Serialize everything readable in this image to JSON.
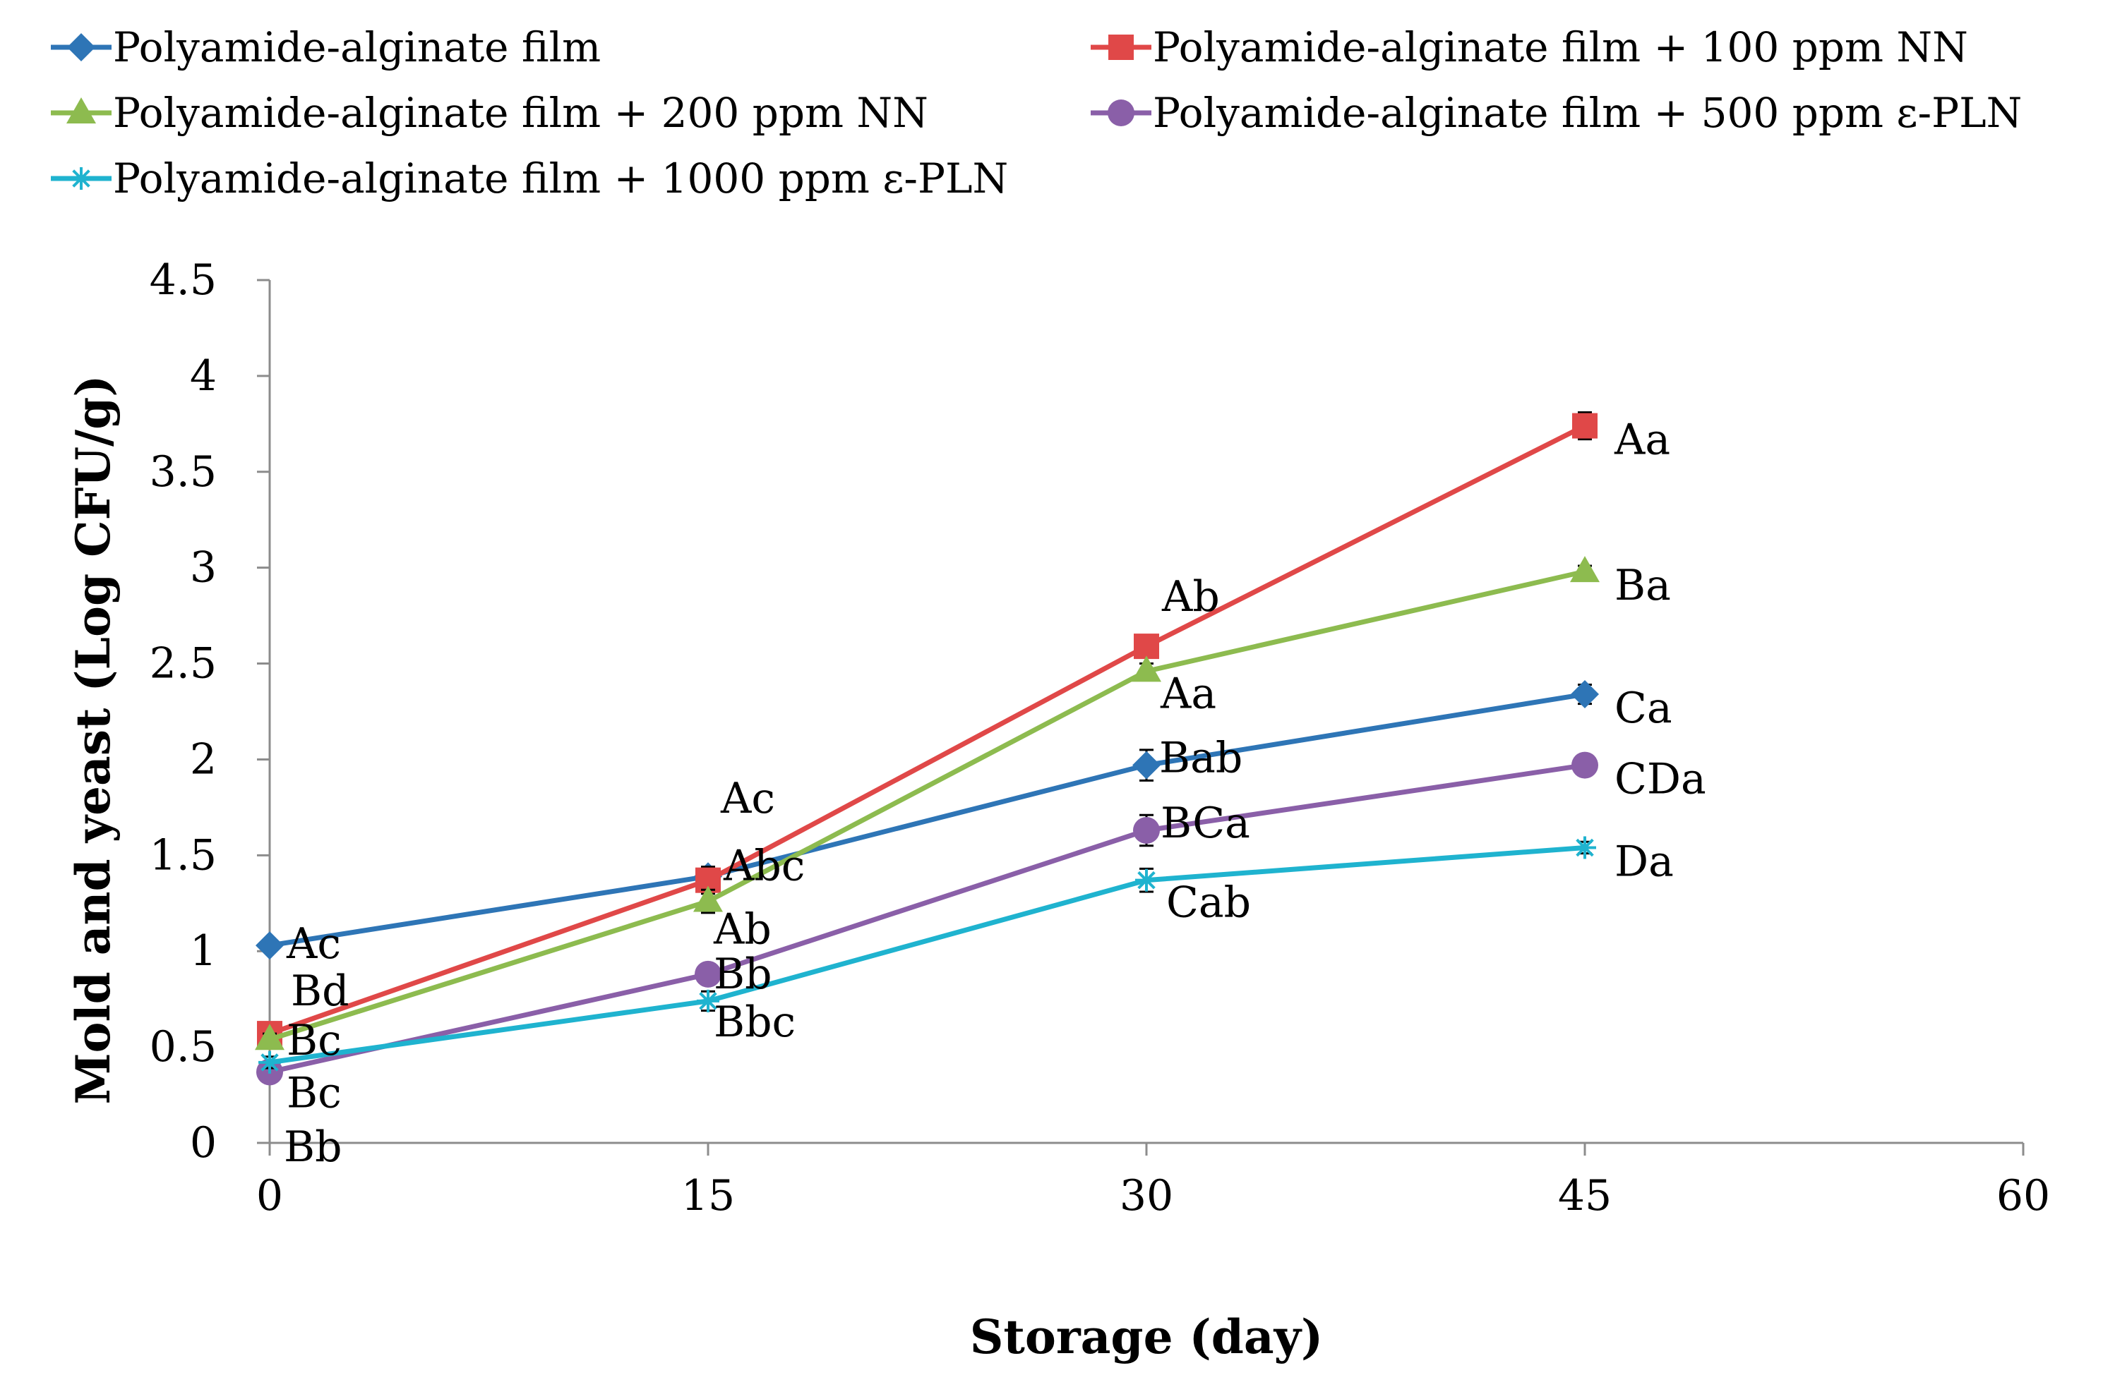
{
  "chart_data": {
    "type": "line",
    "title": "",
    "xlabel": "Storage (day)",
    "ylabel": "Mold and yeast (Log CFU/g)",
    "xlim": [
      0,
      60
    ],
    "ylim": [
      0,
      4.5
    ],
    "xticks": [
      "0",
      "15",
      "30",
      "45",
      "60"
    ],
    "yticks": [
      "0",
      "0.5",
      "1",
      "1.5",
      "2",
      "2.5",
      "3",
      "3.5",
      "4",
      "4.5"
    ],
    "x": [
      0,
      15,
      30,
      45
    ],
    "grid": false,
    "legend_position": "top",
    "series": [
      {
        "name": "Polyamide-alginate film",
        "color": "#2e75b6",
        "marker": "diamond",
        "values": [
          1.03,
          1.39,
          1.97,
          2.34
        ],
        "errors": [
          0.03,
          0.05,
          0.08,
          0.05
        ],
        "labels": [
          "Ac",
          "Ac",
          "Bab",
          "Ca"
        ]
      },
      {
        "name": "Polyamide-alginate film + 100 ppm NN",
        "color": "#e04848",
        "marker": "square",
        "values": [
          0.57,
          1.37,
          2.59,
          3.74
        ],
        "errors": [
          0.03,
          0.07,
          0.05,
          0.07
        ],
        "labels": [
          "Bd",
          "Abc",
          "Ab",
          "Aa"
        ]
      },
      {
        "name": "Polyamide-alginate film + 200 ppm NN",
        "color": "#8dbb4f",
        "marker": "triangle",
        "values": [
          0.54,
          1.26,
          2.46,
          2.98
        ],
        "errors": [
          0.03,
          0.06,
          0.04,
          0.03
        ],
        "labels": [
          "Bc",
          "Ab",
          "Aa",
          "Ba"
        ]
      },
      {
        "name": "Polyamide-alginate film + 500 ppm ε-PLN",
        "color": "#8a5fa8",
        "marker": "circle",
        "values": [
          0.37,
          0.88,
          1.63,
          1.97
        ],
        "errors": [
          0.03,
          0.04,
          0.08,
          0.03
        ],
        "labels": [
          "Bc",
          "Bb",
          "BCa",
          "CDa"
        ]
      },
      {
        "name": "Polyamide-alginate film + 1000 ppm ε-PLN",
        "color": "#1fb3cf",
        "marker": "star",
        "values": [
          0.42,
          0.74,
          1.37,
          1.54
        ],
        "errors": [
          0.03,
          0.05,
          0.06,
          0.03
        ],
        "labels": [
          "Bb",
          "Bbc",
          "Cab",
          "Da"
        ]
      }
    ]
  }
}
